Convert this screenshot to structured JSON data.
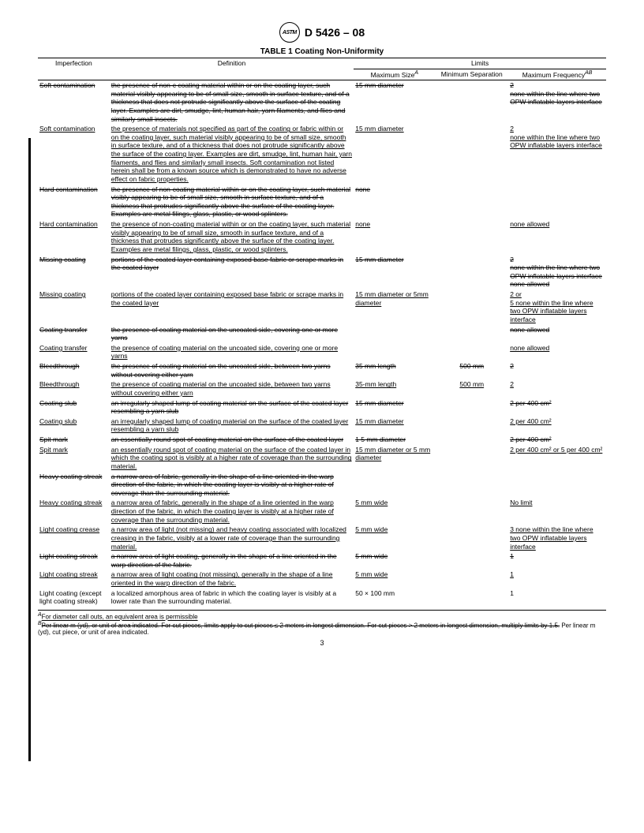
{
  "header": {
    "standard_code": "D 5426 – 08",
    "logo_text": "ASTM"
  },
  "table": {
    "title": "TABLE 1  Coating Non-Uniformity",
    "columns": {
      "imperfection": "Imperfection",
      "definition": "Definition",
      "limits": "Limits",
      "maximum_size": "Maximum Size",
      "maximum_size_sup": "A",
      "minimum_separation": "Minimum Separation",
      "maximum_frequency": "Maximum Frequency",
      "maximum_frequency_sup": "AB"
    },
    "rows": [
      {
        "imperfection": "Soft contamination",
        "definition": "the presence of non-c coating material within or on the coating layer, such material visibly appearing to be of small size, smooth in surface texture, and of a thickness that does not protrude significantly above the surface of the coating layer. Examples are dirt, smudge, lint, human hair, yarn filaments, and flies and similarly small insects.",
        "max_size": "15 mm diameter",
        "min_sep": "",
        "max_freq": "2\nnone within the line where two OPW inflatable layers interface",
        "style": "strike"
      },
      {
        "imperfection": "Soft contamination",
        "definition": "the presence of materials not specified as part of the coating or fabric within or on the coating layer, such material visibly appearing to be of small size, smooth in surface texture, and of a thickness that does not protrude significantly above the surface of the coating layer. Examples are dirt, smudge, lint, human hair, yarn filaments, and flies and similarly small insects. Soft contamination not listed herein shall be from a known source which is demonstrated to have no adverse effect on fabric properties.",
        "max_size": "15 mm diameter",
        "min_sep": "",
        "max_freq": "2\nnone within the line where two OPW inflatable layers interface",
        "style": "underline"
      },
      {
        "imperfection": "Hard contamination",
        "definition": "the presence of non-coating material within or on the coating layer, such material visibly appearing to be of small size, smooth in surface texture, and of a thickness that protrudes significantly above the surface of the coating layer. Examples are metal filings, glass, plastic, or wood splinters.",
        "max_size": "none",
        "min_sep": "",
        "max_freq": "",
        "style": "strike"
      },
      {
        "imperfection": "Hard contamination",
        "definition": "the presence of non-coating material within or on the coating layer, such material visibly appearing to be of small size, smooth in surface texture, and of a thickness that protrudes significantly above the surface of the coating layer. Examples are metal filings, glass, plastic, or wood splinters.",
        "max_size": "none",
        "min_sep": "",
        "max_freq": "none allowed",
        "style": "underline"
      },
      {
        "imperfection": "Missing coating",
        "definition": "portions of the coated layer containing exposed base fabric or scrape marks in the coated layer",
        "max_size": "15 mm diameter",
        "min_sep": "",
        "max_freq": "2\nnone within the line where two OPW inflatable layers interface\nnone allowed",
        "style": "strike"
      },
      {
        "imperfection": "Missing coating",
        "definition": "portions of the coated layer containing exposed base fabric or scrape marks in the coated layer",
        "max_size": "15 mm diameter or 5mm diameter",
        "min_sep": "",
        "max_freq": "2 or\n5 none within the line where two OPW inflatable layers interface",
        "style": "underline"
      },
      {
        "imperfection": "Coating transfer",
        "definition": "the presence of coating material on the uncoated side, covering one or more yarns",
        "max_size": "",
        "min_sep": "",
        "max_freq": "none allowed",
        "style": "strike"
      },
      {
        "imperfection": "Coating transfer",
        "definition": "the presence of coating material on the uncoated side, covering one or more yarns",
        "max_size": "",
        "min_sep": "",
        "max_freq": "none allowed",
        "style": "underline"
      },
      {
        "imperfection": "Bleedthrough",
        "definition": "the presence of coating material on the uncoated side, between two yarns without covering either yarn",
        "max_size": "35 mm length",
        "min_sep": "500 mm",
        "max_freq": "2",
        "style": "strike"
      },
      {
        "imperfection": "Bleedthrough",
        "definition": "the presence of coating material on the uncoated side, between two yarns without covering either yarn",
        "max_size": "35-mm length",
        "min_sep": "500 mm",
        "max_freq": "2",
        "style": "underline"
      },
      {
        "imperfection": "Coating slub",
        "definition": "an irregularly shaped lump of coating material on the surface of the coated layer resembling a yarn slub",
        "max_size": "15 mm diameter",
        "min_sep": "",
        "max_freq": "2 per 400 cm²",
        "style": "strike"
      },
      {
        "imperfection": "Coating slub",
        "definition": "an irregularly shaped lump of coating material on the surface of the coated layer resembling a yarn slub",
        "max_size": "15 mm diameter",
        "min_sep": "",
        "max_freq": "2 per 400 cm²",
        "style": "underline"
      },
      {
        "imperfection": "Spit mark",
        "definition": "an essentially round spot of coating material on the surface of the coated layer",
        "max_size": "1 5 mm diameter",
        "min_sep": "",
        "max_freq": "2 per 400 cm²",
        "style": "strike"
      },
      {
        "imperfection": "Spit mark",
        "definition": "an essentially round spot of coating material on the surface of the coated layer in which the coating spot is visibly at a higher rate of coverage than the surrounding material.",
        "max_size": "15 mm diameter or 5 mm diameter",
        "min_sep": "",
        "max_freq": "2 per 400 cm² or 5 per 400 cm²",
        "style": "underline"
      },
      {
        "imperfection": "Heavy coating streak",
        "definition": "a narrow area of fabric, generally in the shape of a line oriented in the warp direction of the fabric, in which the coating layer is visibly at a higher rate of coverage than the surrounding material.",
        "max_size": "",
        "min_sep": "",
        "max_freq": "",
        "style": "strike"
      },
      {
        "imperfection": "Heavy coating streak",
        "definition": "a narrow area of fabric, generally in the shape of a line oriented in the warp direction of the fabric, in which the coating layer is visibly at a higher rate of coverage than the surrounding material.",
        "max_size": "5 mm wide",
        "min_sep": "",
        "max_freq": "No limit",
        "style": "underline"
      },
      {
        "imperfection": "Light coating crease",
        "definition": "a narrow area of light (not missing) and heavy coating associated with localized creasing in the fabric, visibly at a lower rate of coverage than the surrounding material.",
        "max_size": "5 mm wide",
        "min_sep": "",
        "max_freq": "3 none within the line where two OPW inflatable layers interface",
        "style": "underline"
      },
      {
        "imperfection": "Light coating streak",
        "definition": "a narrow area of light coating, generally in the shape of a line oriented in the warp direction of the fabric.",
        "max_size": "5 mm wide",
        "min_sep": "",
        "max_freq": "1",
        "style": "strike"
      },
      {
        "imperfection": "Light coating streak",
        "definition": "a narrow area of light coating (not missing), generally in the shape of a line oriented in the warp direction of the fabric.",
        "max_size": "5 mm wide",
        "min_sep": "",
        "max_freq": "1",
        "style": "underline"
      },
      {
        "imperfection": "Light  coating (except light coating streak)",
        "definition": "a localized amorphous area of fabric in which the coating layer is visibly at a lower rate than the surrounding material.",
        "max_size": "50 × 100 mm",
        "min_sep": "",
        "max_freq": "1",
        "style": "none"
      }
    ]
  },
  "footnotes": {
    "a": "For diameter call outs, an equivalent area is permissible",
    "a_sup": "A",
    "b_strike": "Per linear m (yd), or unit of area indicated. For cut pieces, limits apply to cut pieces ≤ 2 meters in longest dimension. For cut pieces > 2 meters in longest dimension, multiply limits by 1.5.",
    "b_sup": "B",
    "b_plain": " Per linear m (yd), cut piece, or unit of area indicated."
  },
  "page_number": "3"
}
